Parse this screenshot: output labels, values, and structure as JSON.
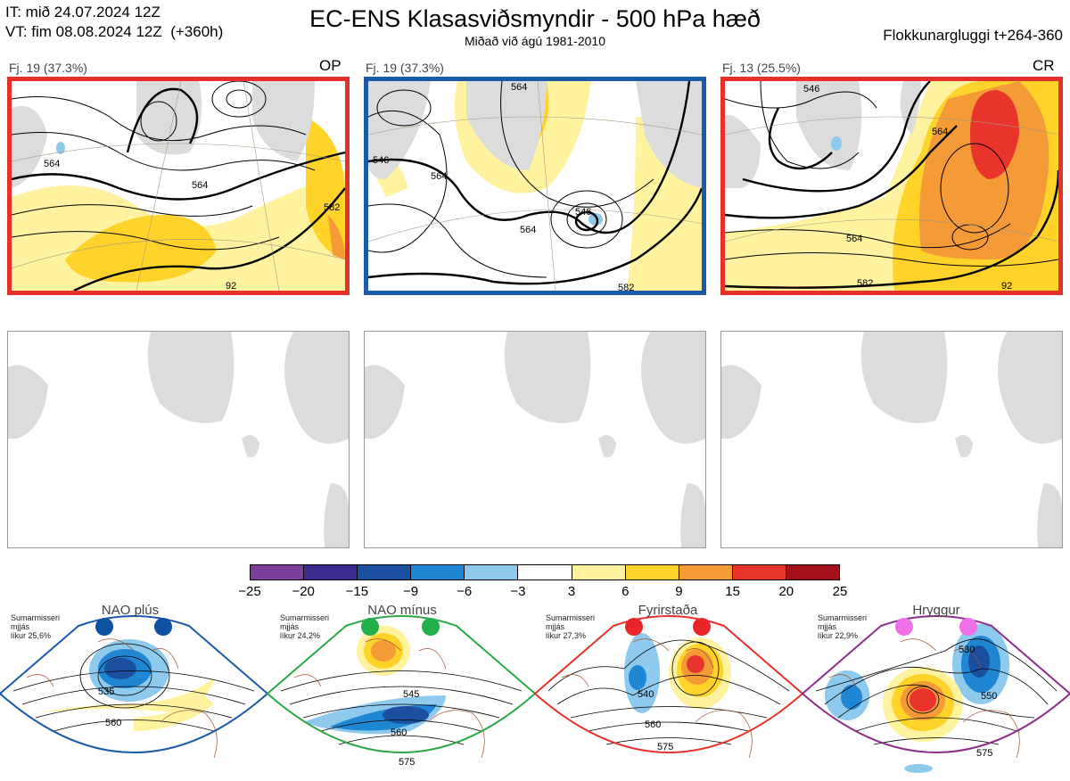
{
  "header": {
    "it_line": "IT: mið 24.07.2024 12Z",
    "vt_line": "VT: fim 08.08.2024 12Z  (+360h)",
    "title": "EC-ENS Klasasviðsmyndir - 500 hPa hæð",
    "subtitle": "Miðað við ágú 1981-2010",
    "window": "Flokkunargluggi t+264-360"
  },
  "top_panels": [
    {
      "label": "Fj. 19 (37.3%)",
      "type": "OP",
      "border_color": "#e8302a",
      "contours": [
        "564",
        "564",
        "582",
        "92"
      ]
    },
    {
      "label": "Fj. 19 (37.3%)",
      "type": "",
      "border_color": "#1a5aa8",
      "contours": [
        "546",
        "564",
        "564",
        "564",
        "546",
        "582"
      ]
    },
    {
      "label": "Fj. 13 (25.5%)",
      "type": "CR",
      "border_color": "#e8302a",
      "contours": [
        "546",
        "564",
        "564",
        "582",
        "92"
      ]
    }
  ],
  "colorbar": {
    "ticks": [
      "−25",
      "−20",
      "−15",
      "−9",
      "−6",
      "−3",
      "3",
      "6",
      "9",
      "15",
      "20",
      "25"
    ],
    "colors": [
      "#7b3f99",
      "#3d2b8f",
      "#1b4fa0",
      "#1f86d4",
      "#8ec9ee",
      "#ffffff",
      "#fff3a0",
      "#ffd32a",
      "#f49a37",
      "#e8342b",
      "#a3121a"
    ]
  },
  "regimes": [
    {
      "title": "NAO plús",
      "note": [
        "Sumarmisseri",
        "mjjás",
        "líkur 25,6%"
      ],
      "dot_color": "#0d52a2",
      "arc_color": "#1a5aa8",
      "contours": [
        "535",
        "560"
      ]
    },
    {
      "title": "NAO mínus",
      "note": [
        "Sumarmisseri",
        "mjjás",
        "líkur 24,2%"
      ],
      "dot_color": "#22b04b",
      "arc_color": "#2ca848",
      "contours": [
        "545",
        "560",
        "575"
      ]
    },
    {
      "title": "Fyrirstaða",
      "note": [
        "Sumarmisseri",
        "mjjás",
        "líkur 27,3%"
      ],
      "dot_color": "#e8262a",
      "arc_color": "#e8302a",
      "contours": [
        "540",
        "560",
        "575"
      ]
    },
    {
      "title": "Hryggur",
      "note": [
        "Sumarmisseri",
        "mjjás",
        "líkur 22,9%"
      ],
      "dot_color": "#ee6fe8",
      "arc_color": "#8b2f8b",
      "contours": [
        "530",
        "550",
        "575"
      ]
    }
  ]
}
